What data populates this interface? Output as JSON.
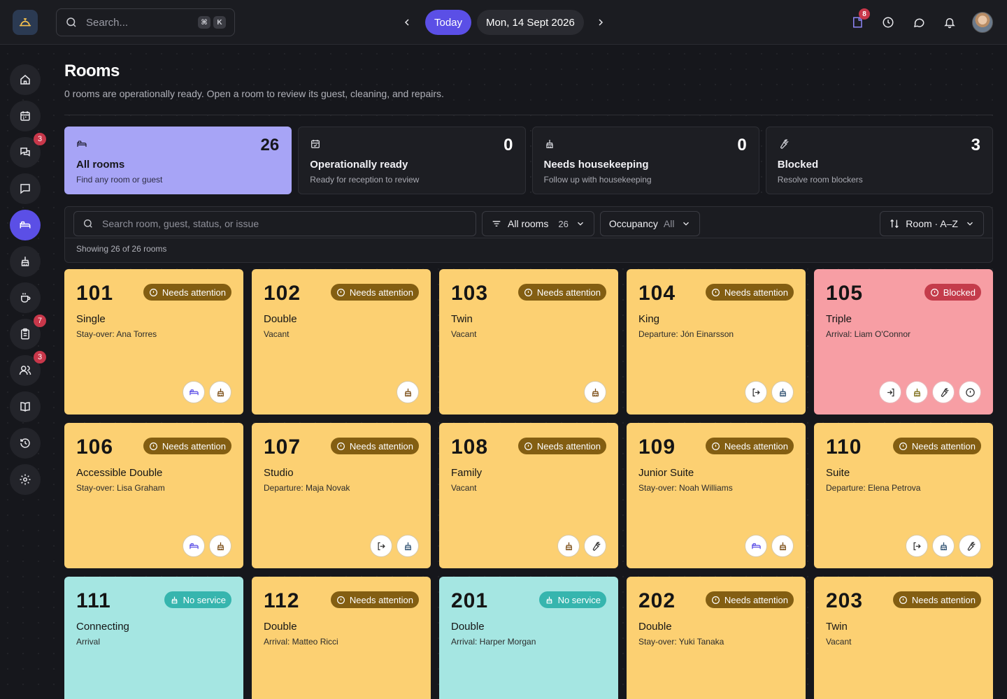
{
  "topbar": {
    "search_placeholder": "Search...",
    "kbd_1": "⌘",
    "kbd_2": "K",
    "today_label": "Today",
    "date_label": "Mon, 14 Sept 2026",
    "tasks_badge": "8"
  },
  "sidebar": {
    "items": [
      {
        "icon": "home-icon"
      },
      {
        "icon": "calendar-icon"
      },
      {
        "icon": "chat-icon",
        "badge": "3"
      },
      {
        "icon": "message-square-icon"
      },
      {
        "icon": "bed-icon",
        "active": true
      },
      {
        "icon": "housekeeping-icon"
      },
      {
        "icon": "coffee-icon"
      },
      {
        "icon": "clipboard-icon",
        "badge": "7"
      },
      {
        "icon": "users-icon",
        "badge": "3"
      },
      {
        "icon": "book-icon"
      },
      {
        "icon": "history-icon"
      },
      {
        "icon": "settings-icon"
      }
    ]
  },
  "page": {
    "title": "Rooms",
    "subtitle": "0 rooms are operationally ready. Open a room to review its guest, cleaning, and repairs."
  },
  "stats": [
    {
      "label": "All rooms",
      "desc": "Find any room or guest",
      "count": "26",
      "icon": "bed-icon"
    },
    {
      "label": "Operationally ready",
      "desc": "Ready for reception to review",
      "count": "0",
      "icon": "calendar-check-icon"
    },
    {
      "label": "Needs housekeeping",
      "desc": "Follow up with housekeeping",
      "count": "0",
      "icon": "housekeeping-icon"
    },
    {
      "label": "Blocked",
      "desc": "Resolve room blockers",
      "count": "3",
      "icon": "wrench-icon"
    }
  ],
  "filters": {
    "search_placeholder": "Search room, guest, status, or issue",
    "scope_label": "All rooms",
    "scope_count": "26",
    "occupancy_label": "Occupancy",
    "occupancy_value": "All",
    "sort_label": "Room · A–Z",
    "showing": "Showing 26 of 26 rooms"
  },
  "rooms": [
    {
      "num": "101",
      "type": "Single",
      "occ": "Stay-over: Ana Torres",
      "status": "Needs attention"
    },
    {
      "num": "102",
      "type": "Double",
      "occ": "Vacant",
      "status": "Needs attention"
    },
    {
      "num": "103",
      "type": "Twin",
      "occ": "Vacant",
      "status": "Needs attention"
    },
    {
      "num": "104",
      "type": "King",
      "occ": "Departure: Jón Einarsson",
      "status": "Needs attention"
    },
    {
      "num": "105",
      "type": "Triple",
      "occ": "Arrival: Liam O'Connor",
      "status": "Blocked"
    },
    {
      "num": "106",
      "type": "Accessible Double",
      "occ": "Stay-over: Lisa Graham",
      "status": "Needs attention"
    },
    {
      "num": "107",
      "type": "Studio",
      "occ": "Departure: Maja Novak",
      "status": "Needs attention"
    },
    {
      "num": "108",
      "type": "Family",
      "occ": "Vacant",
      "status": "Needs attention"
    },
    {
      "num": "109",
      "type": "Junior Suite",
      "occ": "Stay-over: Noah Williams",
      "status": "Needs attention"
    },
    {
      "num": "110",
      "type": "Suite",
      "occ": "Departure: Elena Petrova",
      "status": "Needs attention"
    },
    {
      "num": "111",
      "type": "Connecting",
      "occ": "Arrival",
      "status": "No service"
    },
    {
      "num": "112",
      "type": "Double",
      "occ": "Arrival: Matteo Ricci",
      "status": "Needs attention"
    },
    {
      "num": "201",
      "type": "Double",
      "occ": "Arrival: Harper Morgan",
      "status": "No service"
    },
    {
      "num": "202",
      "type": "Double",
      "occ": "Stay-over: Yuki Tanaka",
      "status": "Needs attention"
    },
    {
      "num": "203",
      "type": "Twin",
      "occ": "Vacant",
      "status": "Needs attention"
    }
  ],
  "colors": {
    "accent": "#5b4fe6",
    "attention_card": "#fcd072",
    "blocked_card": "#f79ea4",
    "noservice_card": "#a5e6e2"
  }
}
